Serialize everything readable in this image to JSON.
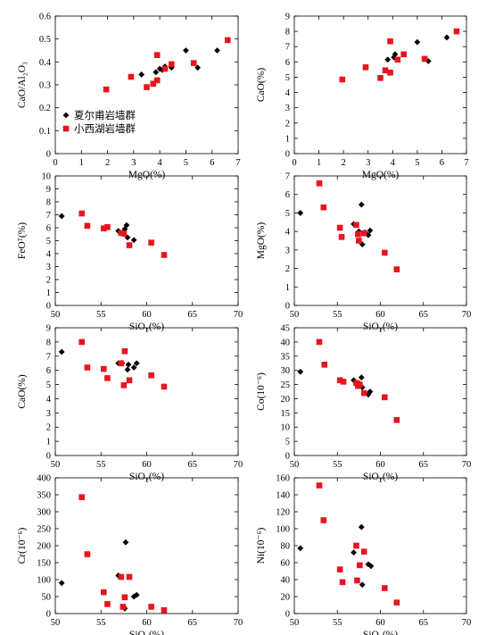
{
  "legend": [
    {
      "label": "夏尔甫岩墙群",
      "marker": "diamond",
      "color": "#000000"
    },
    {
      "label": "小西湖岩墙群",
      "marker": "square",
      "color": "#e8141e"
    }
  ],
  "chart_data": [
    {
      "type": "scatter",
      "xlabel": "MgO(%)",
      "ylabel": "CaO/Al₂O₃",
      "xlim": [
        0,
        7
      ],
      "ylim": [
        0,
        0.6
      ],
      "xticks": [
        "0",
        "1",
        "2",
        "3",
        "4",
        "5",
        "6",
        "7"
      ],
      "yticks": [
        "0",
        "0.1",
        "0.2",
        "0.3",
        "0.4",
        "0.5",
        "0.6"
      ],
      "series": [
        {
          "name": "夏尔甫岩墙群",
          "points": [
            [
              3.3,
              0.345
            ],
            [
              3.85,
              0.355
            ],
            [
              4.0,
              0.37
            ],
            [
              4.1,
              0.365
            ],
            [
              4.2,
              0.38
            ],
            [
              4.45,
              0.375
            ],
            [
              5.0,
              0.45
            ],
            [
              5.45,
              0.375
            ],
            [
              6.2,
              0.45
            ]
          ]
        },
        {
          "name": "小西湖岩墙群",
          "points": [
            [
              1.95,
              0.28
            ],
            [
              2.9,
              0.335
            ],
            [
              3.5,
              0.29
            ],
            [
              3.75,
              0.305
            ],
            [
              3.9,
              0.32
            ],
            [
              3.9,
              0.43
            ],
            [
              4.2,
              0.37
            ],
            [
              4.45,
              0.39
            ],
            [
              5.3,
              0.395
            ],
            [
              6.6,
              0.495
            ]
          ]
        }
      ]
    },
    {
      "type": "scatter",
      "xlabel": "MgO(%)",
      "ylabel": "CaO(%)",
      "xlim": [
        0,
        7
      ],
      "ylim": [
        0,
        9
      ],
      "xticks": [
        "0",
        "1",
        "2",
        "3",
        "4",
        "5",
        "6",
        "7"
      ],
      "yticks": [
        "0",
        "1",
        "2",
        "3",
        "4",
        "5",
        "6",
        "7",
        "8",
        "9"
      ],
      "series": [
        {
          "name": "夏尔甫岩墙群",
          "points": [
            [
              3.8,
              6.15
            ],
            [
              4.05,
              6.3
            ],
            [
              4.1,
              6.5
            ],
            [
              4.45,
              6.5
            ],
            [
              5.0,
              7.3
            ],
            [
              5.45,
              6.05
            ],
            [
              6.2,
              7.6
            ]
          ]
        },
        {
          "name": "小西湖岩墙群",
          "points": [
            [
              1.95,
              4.85
            ],
            [
              2.9,
              5.65
            ],
            [
              3.5,
              4.95
            ],
            [
              3.7,
              5.45
            ],
            [
              3.9,
              5.3
            ],
            [
              3.9,
              7.35
            ],
            [
              4.2,
              6.15
            ],
            [
              4.45,
              6.5
            ],
            [
              5.3,
              6.2
            ],
            [
              6.6,
              8.0
            ]
          ]
        }
      ]
    },
    {
      "type": "scatter",
      "xlabel": "SiO₂(%)",
      "ylabel": "FeOᵀ(%)",
      "xlim": [
        50,
        70
      ],
      "ylim": [
        0,
        10
      ],
      "xticks": [
        "50",
        "55",
        "60",
        "65",
        "70"
      ],
      "yticks": [
        "0",
        "1",
        "2",
        "3",
        "4",
        "5",
        "6",
        "7",
        "8",
        "9",
        "10"
      ],
      "series": [
        {
          "name": "夏尔甫岩墙群",
          "points": [
            [
              50.7,
              6.9
            ],
            [
              56.9,
              5.75
            ],
            [
              57.5,
              5.7
            ],
            [
              57.6,
              5.9
            ],
            [
              57.8,
              6.2
            ],
            [
              57.9,
              5.25
            ],
            [
              58.6,
              5.05
            ]
          ]
        },
        {
          "name": "小西湖岩墙群",
          "points": [
            [
              52.9,
              7.1
            ],
            [
              53.5,
              6.15
            ],
            [
              55.3,
              5.95
            ],
            [
              55.7,
              6.05
            ],
            [
              57.2,
              5.6
            ],
            [
              57.5,
              5.55
            ],
            [
              58.1,
              4.65
            ],
            [
              60.5,
              4.85
            ],
            [
              61.9,
              3.9
            ]
          ]
        }
      ]
    },
    {
      "type": "scatter",
      "xlabel": "SiO₂(%)",
      "ylabel": "MgO(%)",
      "xlim": [
        50,
        70
      ],
      "ylim": [
        0,
        7
      ],
      "xticks": [
        "50",
        "55",
        "60",
        "65",
        "70"
      ],
      "yticks": [
        "0",
        "1",
        "2",
        "3",
        "4",
        "5",
        "6",
        "7"
      ],
      "series": [
        {
          "name": "夏尔甫岩墙群",
          "points": [
            [
              50.7,
              5.0
            ],
            [
              56.9,
              4.4
            ],
            [
              57.5,
              4.0
            ],
            [
              57.8,
              5.45
            ],
            [
              57.9,
              3.3
            ],
            [
              58.2,
              3.95
            ],
            [
              58.6,
              3.8
            ],
            [
              58.8,
              4.05
            ]
          ]
        },
        {
          "name": "小西湖岩墙群",
          "points": [
            [
              52.9,
              6.6
            ],
            [
              53.4,
              5.3
            ],
            [
              55.3,
              4.2
            ],
            [
              55.5,
              3.7
            ],
            [
              57.2,
              4.35
            ],
            [
              57.4,
              3.85
            ],
            [
              57.5,
              3.5
            ],
            [
              58.1,
              3.9
            ],
            [
              60.5,
              2.85
            ],
            [
              61.9,
              1.95
            ]
          ]
        }
      ]
    },
    {
      "type": "scatter",
      "xlabel": "SiO₂(%)",
      "ylabel": "CaO(%)",
      "xlim": [
        50,
        70
      ],
      "ylim": [
        0,
        9
      ],
      "xticks": [
        "50",
        "55",
        "60",
        "65",
        "70"
      ],
      "yticks": [
        "0",
        "1",
        "2",
        "3",
        "4",
        "5",
        "6",
        "7",
        "8",
        "9"
      ],
      "series": [
        {
          "name": "夏尔甫岩墙群",
          "points": [
            [
              50.7,
              7.3
            ],
            [
              56.9,
              6.5
            ],
            [
              57.3,
              6.5
            ],
            [
              57.9,
              6.05
            ],
            [
              58.0,
              6.4
            ],
            [
              58.6,
              6.2
            ],
            [
              58.9,
              6.5
            ]
          ]
        },
        {
          "name": "小西湖岩墙群",
          "points": [
            [
              52.9,
              8.0
            ],
            [
              53.5,
              6.2
            ],
            [
              55.3,
              6.1
            ],
            [
              55.7,
              5.45
            ],
            [
              57.2,
              6.5
            ],
            [
              57.5,
              4.95
            ],
            [
              57.6,
              7.35
            ],
            [
              58.1,
              5.3
            ],
            [
              60.5,
              5.65
            ],
            [
              61.9,
              4.85
            ]
          ]
        }
      ]
    },
    {
      "type": "scatter",
      "xlabel": "SiO₂(%)",
      "ylabel": "Co(10⁻⁶)",
      "xlim": [
        50,
        70
      ],
      "ylim": [
        0,
        45
      ],
      "xticks": [
        "50",
        "55",
        "60",
        "65",
        "70"
      ],
      "yticks": [
        "0",
        "5",
        "10",
        "15",
        "20",
        "25",
        "30",
        "35",
        "40",
        "45"
      ],
      "series": [
        {
          "name": "夏尔甫岩墙群",
          "points": [
            [
              50.7,
              29.5
            ],
            [
              56.9,
              26.5
            ],
            [
              57.5,
              25.5
            ],
            [
              57.8,
              27.5
            ],
            [
              57.9,
              24.0
            ],
            [
              58.6,
              21.5
            ],
            [
              58.8,
              22.5
            ]
          ]
        },
        {
          "name": "小西湖岩墙群",
          "points": [
            [
              52.9,
              40.0
            ],
            [
              53.5,
              32.0
            ],
            [
              55.3,
              26.5
            ],
            [
              55.7,
              26.0
            ],
            [
              57.2,
              25.5
            ],
            [
              57.4,
              24.5
            ],
            [
              57.6,
              25.0
            ],
            [
              58.1,
              22.0
            ],
            [
              60.5,
              20.5
            ],
            [
              61.9,
              12.5
            ]
          ]
        }
      ]
    },
    {
      "type": "scatter",
      "xlabel": "SiO₂(%)",
      "ylabel": "Cr(10⁻⁶)",
      "xlim": [
        50,
        70
      ],
      "ylim": [
        0,
        400
      ],
      "xticks": [
        "50",
        "55",
        "60",
        "65",
        "70"
      ],
      "yticks": [
        "0",
        "50",
        "100",
        "150",
        "200",
        "250",
        "300",
        "350",
        "400"
      ],
      "series": [
        {
          "name": "夏尔甫岩墙群",
          "points": [
            [
              50.7,
              90
            ],
            [
              56.9,
              112
            ],
            [
              57.6,
              15
            ],
            [
              57.7,
              210
            ],
            [
              58.6,
              50
            ],
            [
              58.9,
              55
            ]
          ]
        },
        {
          "name": "小西湖岩墙群",
          "points": [
            [
              52.9,
              343
            ],
            [
              53.5,
              175
            ],
            [
              55.3,
              63
            ],
            [
              55.7,
              28
            ],
            [
              57.2,
              108
            ],
            [
              57.4,
              20
            ],
            [
              57.6,
              48
            ],
            [
              58.1,
              108
            ],
            [
              60.5,
              20
            ],
            [
              61.9,
              10
            ]
          ]
        }
      ]
    },
    {
      "type": "scatter",
      "xlabel": "SiO₂(%)",
      "ylabel": "Ni(10⁻⁶)",
      "xlim": [
        50,
        70
      ],
      "ylim": [
        0,
        160
      ],
      "xticks": [
        "50",
        "55",
        "60",
        "65",
        "70"
      ],
      "yticks": [
        "0",
        "20",
        "40",
        "60",
        "80",
        "100",
        "120",
        "140",
        "160"
      ],
      "series": [
        {
          "name": "夏尔甫岩墙群",
          "points": [
            [
              50.7,
              77
            ],
            [
              56.9,
              72
            ],
            [
              57.8,
              102
            ],
            [
              57.9,
              34
            ],
            [
              58.6,
              58
            ],
            [
              58.9,
              56
            ]
          ]
        },
        {
          "name": "小西湖岩墙群",
          "points": [
            [
              52.9,
              151
            ],
            [
              53.4,
              110
            ],
            [
              55.3,
              52
            ],
            [
              55.6,
              37
            ],
            [
              57.2,
              80
            ],
            [
              57.3,
              39
            ],
            [
              57.6,
              57
            ],
            [
              58.1,
              73
            ],
            [
              60.5,
              30
            ],
            [
              61.9,
              13
            ]
          ]
        }
      ]
    }
  ]
}
